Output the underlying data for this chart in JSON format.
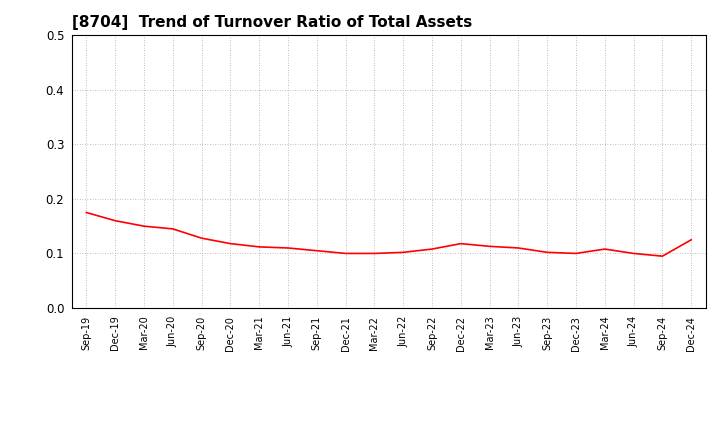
{
  "title": "[8704]  Trend of Turnover Ratio of Total Assets",
  "title_fontsize": 11,
  "line_color": "#FF0000",
  "line_width": 1.2,
  "background_color": "#FFFFFF",
  "plot_bg_color": "#FFFFFF",
  "grid_color": "#AAAAAA",
  "ylim": [
    0.0,
    0.5
  ],
  "yticks": [
    0.0,
    0.1,
    0.2,
    0.3,
    0.4,
    0.5
  ],
  "x_labels": [
    "Sep-19",
    "Dec-19",
    "Mar-20",
    "Jun-20",
    "Sep-20",
    "Dec-20",
    "Mar-21",
    "Jun-21",
    "Sep-21",
    "Dec-21",
    "Mar-22",
    "Jun-22",
    "Sep-22",
    "Dec-22",
    "Mar-23",
    "Jun-23",
    "Sep-23",
    "Dec-23",
    "Mar-24",
    "Jun-24",
    "Sep-24",
    "Dec-24"
  ],
  "values": [
    0.175,
    0.16,
    0.15,
    0.145,
    0.128,
    0.118,
    0.112,
    0.11,
    0.105,
    0.1,
    0.1,
    0.102,
    0.108,
    0.118,
    0.113,
    0.11,
    0.102,
    0.1,
    0.108,
    0.1,
    0.095,
    0.125
  ]
}
